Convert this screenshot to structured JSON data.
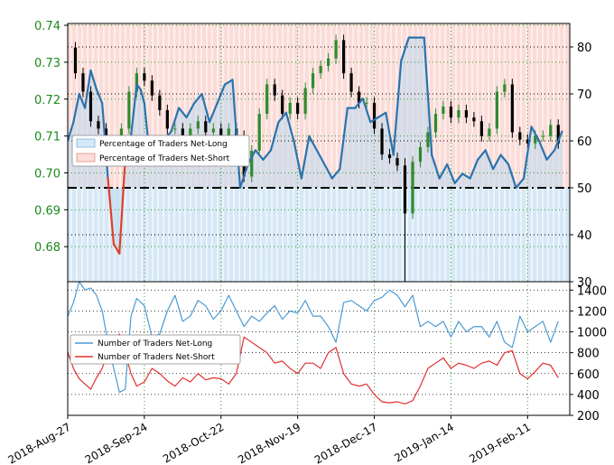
{
  "chart_data": {
    "type": "line",
    "x_tick_labels": [
      "2018-Aug-27",
      "2018-Sep-24",
      "2018-Oct-22",
      "2018-Nov-19",
      "2018-Dec-17",
      "2019-Jan-14",
      "2019-Feb-11"
    ],
    "x_tick_positions": [
      0,
      4,
      8,
      12,
      16,
      20,
      24
    ],
    "x_range": [
      0,
      26.2
    ],
    "top_panel": {
      "price_axis": {
        "ticks": [
          "0.74",
          "0.73",
          "0.72",
          "0.71",
          "0.70",
          "0.69",
          "0.68"
        ],
        "tick_values": [
          0.74,
          0.73,
          0.72,
          0.71,
          0.7,
          0.69,
          0.68
        ],
        "ylim": [
          0.6705,
          0.7405
        ]
      },
      "percent_axis": {
        "ticks": [
          "80",
          "70",
          "60",
          "50",
          "40",
          "30"
        ],
        "tick_values": [
          80,
          70,
          60,
          50,
          40,
          30
        ],
        "ylim": [
          30,
          85
        ]
      },
      "threshold": 50,
      "legend": {
        "position": "middle-left",
        "entries": [
          "Percentage of Traders Net-Long",
          "Percentage of Traders Net-Short"
        ]
      },
      "grid": true,
      "colors": {
        "net_long_line": "#2b73ad",
        "net_short_line": "#e0402a",
        "net_long_fill": "#d6e8f6",
        "net_short_fill": "#fbdcd8",
        "candle_up": "#2e8b2e",
        "candle_down": "#000000"
      },
      "percentage_net_long": {
        "x": [
          0,
          0.3,
          0.6,
          0.9,
          1.2,
          1.5,
          1.8,
          2.1,
          2.4,
          2.7,
          3.0,
          3.3,
          3.6,
          3.8,
          4.0,
          4.2,
          4.6,
          5.0,
          5.4,
          5.8,
          6.2,
          6.6,
          7.0,
          7.4,
          7.8,
          8.2,
          8.6,
          9.0,
          9.4,
          9.8,
          10.2,
          10.6,
          11.0,
          11.4,
          11.8,
          12.2,
          12.6,
          13.0,
          13.4,
          13.8,
          14.2,
          14.6,
          15.0,
          15.4,
          15.8,
          16.2,
          16.6,
          17.0,
          17.4,
          17.8,
          18.2,
          18.6,
          19.0,
          19.4,
          19.8,
          20.2,
          20.6,
          21.0,
          21.4,
          21.8,
          22.2,
          22.6,
          23.0,
          23.4,
          23.8,
          24.2,
          24.6,
          25.0,
          25.4,
          25.8
        ],
        "values": [
          60,
          64,
          70,
          67,
          75,
          71,
          68,
          52,
          38,
          36,
          56,
          61,
          72,
          71,
          68,
          60,
          55,
          60,
          62,
          67,
          65,
          68,
          70,
          64,
          68,
          72,
          73,
          50,
          55,
          58,
          56,
          58,
          64,
          66,
          60,
          52,
          61,
          58,
          55,
          52,
          54,
          67,
          67,
          69,
          64,
          65,
          66,
          57,
          77,
          82,
          82,
          82,
          57,
          52,
          55,
          51,
          53,
          52,
          56,
          58,
          54,
          57,
          55,
          50,
          52,
          63,
          60,
          56,
          58,
          62
        ]
      },
      "price_close": {
        "x": [
          0,
          0.4,
          0.8,
          1.2,
          1.6,
          2.0,
          2.4,
          2.8,
          3.2,
          3.6,
          4.0,
          4.4,
          4.8,
          5.2,
          5.6,
          6.0,
          6.4,
          6.8,
          7.2,
          7.6,
          8.0,
          8.4,
          8.8,
          9.2,
          9.6,
          10.0,
          10.4,
          10.8,
          11.2,
          11.6,
          12.0,
          12.4,
          12.8,
          13.2,
          13.6,
          14.0,
          14.4,
          14.8,
          15.2,
          15.6,
          16.0,
          16.4,
          16.8,
          17.2,
          17.6,
          18.0,
          18.4,
          18.8,
          19.2,
          19.6,
          20.0,
          20.4,
          20.8,
          21.2,
          21.6,
          22.0,
          22.4,
          22.8,
          23.2,
          23.6,
          24.0,
          24.4,
          24.8,
          25.2,
          25.6
        ],
        "values": [
          0.734,
          0.727,
          0.722,
          0.714,
          0.712,
          0.707,
          0.705,
          0.712,
          0.722,
          0.727,
          0.725,
          0.721,
          0.717,
          0.712,
          0.712,
          0.708,
          0.712,
          0.714,
          0.711,
          0.712,
          0.71,
          0.712,
          0.71,
          0.699,
          0.706,
          0.716,
          0.724,
          0.721,
          0.716,
          0.719,
          0.716,
          0.723,
          0.727,
          0.729,
          0.731,
          0.736,
          0.727,
          0.722,
          0.719,
          0.719,
          0.712,
          0.705,
          0.704,
          0.702,
          0.689,
          0.703,
          0.707,
          0.711,
          0.716,
          0.718,
          0.715,
          0.717,
          0.715,
          0.714,
          0.71,
          0.712,
          0.722,
          0.724,
          0.711,
          0.709,
          0.708,
          0.71,
          0.71,
          0.713,
          0.708
        ]
      }
    },
    "bottom_panel": {
      "axis": {
        "ticks": [
          "1400",
          "1200",
          "1000",
          "800",
          "600",
          "400",
          "200"
        ],
        "tick_values": [
          1400,
          1200,
          1000,
          800,
          600,
          400,
          200
        ],
        "ylim": [
          200,
          1480
        ]
      },
      "legend": {
        "position": "middle-left"
      },
      "series": [
        {
          "name": "Number of Traders Net-Long",
          "color": "#4a9ad6",
          "x": [
            0,
            0.3,
            0.6,
            0.9,
            1.2,
            1.5,
            1.8,
            2.1,
            2.4,
            2.7,
            3.0,
            3.3,
            3.6,
            4.0,
            4.4,
            4.8,
            5.2,
            5.6,
            6.0,
            6.4,
            6.8,
            7.2,
            7.6,
            8.0,
            8.4,
            8.8,
            9.2,
            9.6,
            10.0,
            10.4,
            10.8,
            11.2,
            11.6,
            12.0,
            12.4,
            12.8,
            13.2,
            13.6,
            14.0,
            14.4,
            14.8,
            15.2,
            15.6,
            16.0,
            16.4,
            16.8,
            17.2,
            17.6,
            18.0,
            18.4,
            18.8,
            19.2,
            19.6,
            20.0,
            20.4,
            20.8,
            21.2,
            21.6,
            22.0,
            22.4,
            22.8,
            23.2,
            23.6,
            24.0,
            24.4,
            24.8,
            25.2,
            25.6
          ],
          "values": [
            1150,
            1280,
            1480,
            1400,
            1420,
            1350,
            1200,
            900,
            650,
            420,
            450,
            1150,
            1320,
            1250,
            950,
            980,
            1200,
            1350,
            1100,
            1150,
            1300,
            1250,
            1120,
            1200,
            1350,
            1200,
            1050,
            1150,
            1100,
            1180,
            1250,
            1120,
            1200,
            1180,
            1300,
            1150,
            1150,
            1050,
            900,
            1280,
            1300,
            1250,
            1200,
            1300,
            1330,
            1400,
            1350,
            1240,
            1350,
            1050,
            1100,
            1050,
            1100,
            950,
            1100,
            1000,
            1050,
            1050,
            950,
            1100,
            900,
            850,
            1150,
            1000,
            1050,
            1100,
            900,
            1100
          ]
        },
        {
          "name": "Number of Traders Net-Short",
          "color": "#e03030",
          "x": [
            0,
            0.3,
            0.6,
            0.9,
            1.2,
            1.5,
            1.8,
            2.1,
            2.4,
            2.7,
            3.0,
            3.3,
            3.6,
            4.0,
            4.4,
            4.8,
            5.2,
            5.6,
            6.0,
            6.4,
            6.8,
            7.2,
            7.6,
            8.0,
            8.4,
            8.8,
            9.2,
            9.6,
            10.0,
            10.4,
            10.8,
            11.2,
            11.6,
            12.0,
            12.4,
            12.8,
            13.2,
            13.6,
            14.0,
            14.4,
            14.8,
            15.2,
            15.6,
            16.0,
            16.4,
            16.8,
            17.2,
            17.6,
            18.0,
            18.4,
            18.8,
            19.2,
            19.6,
            20.0,
            20.4,
            20.8,
            21.2,
            21.6,
            22.0,
            22.4,
            22.8,
            23.2,
            23.6,
            24.0,
            24.4,
            24.8,
            25.2,
            25.6
          ],
          "values": [
            800,
            650,
            550,
            500,
            450,
            560,
            650,
            800,
            900,
            980,
            800,
            600,
            480,
            520,
            650,
            600,
            530,
            480,
            560,
            520,
            600,
            540,
            560,
            550,
            500,
            600,
            950,
            900,
            850,
            800,
            700,
            720,
            650,
            600,
            700,
            700,
            650,
            800,
            850,
            600,
            500,
            480,
            500,
            400,
            330,
            320,
            330,
            310,
            340,
            480,
            650,
            700,
            750,
            650,
            700,
            680,
            650,
            700,
            720,
            680,
            800,
            820,
            600,
            550,
            620,
            700,
            680,
            560
          ]
        }
      ]
    }
  }
}
